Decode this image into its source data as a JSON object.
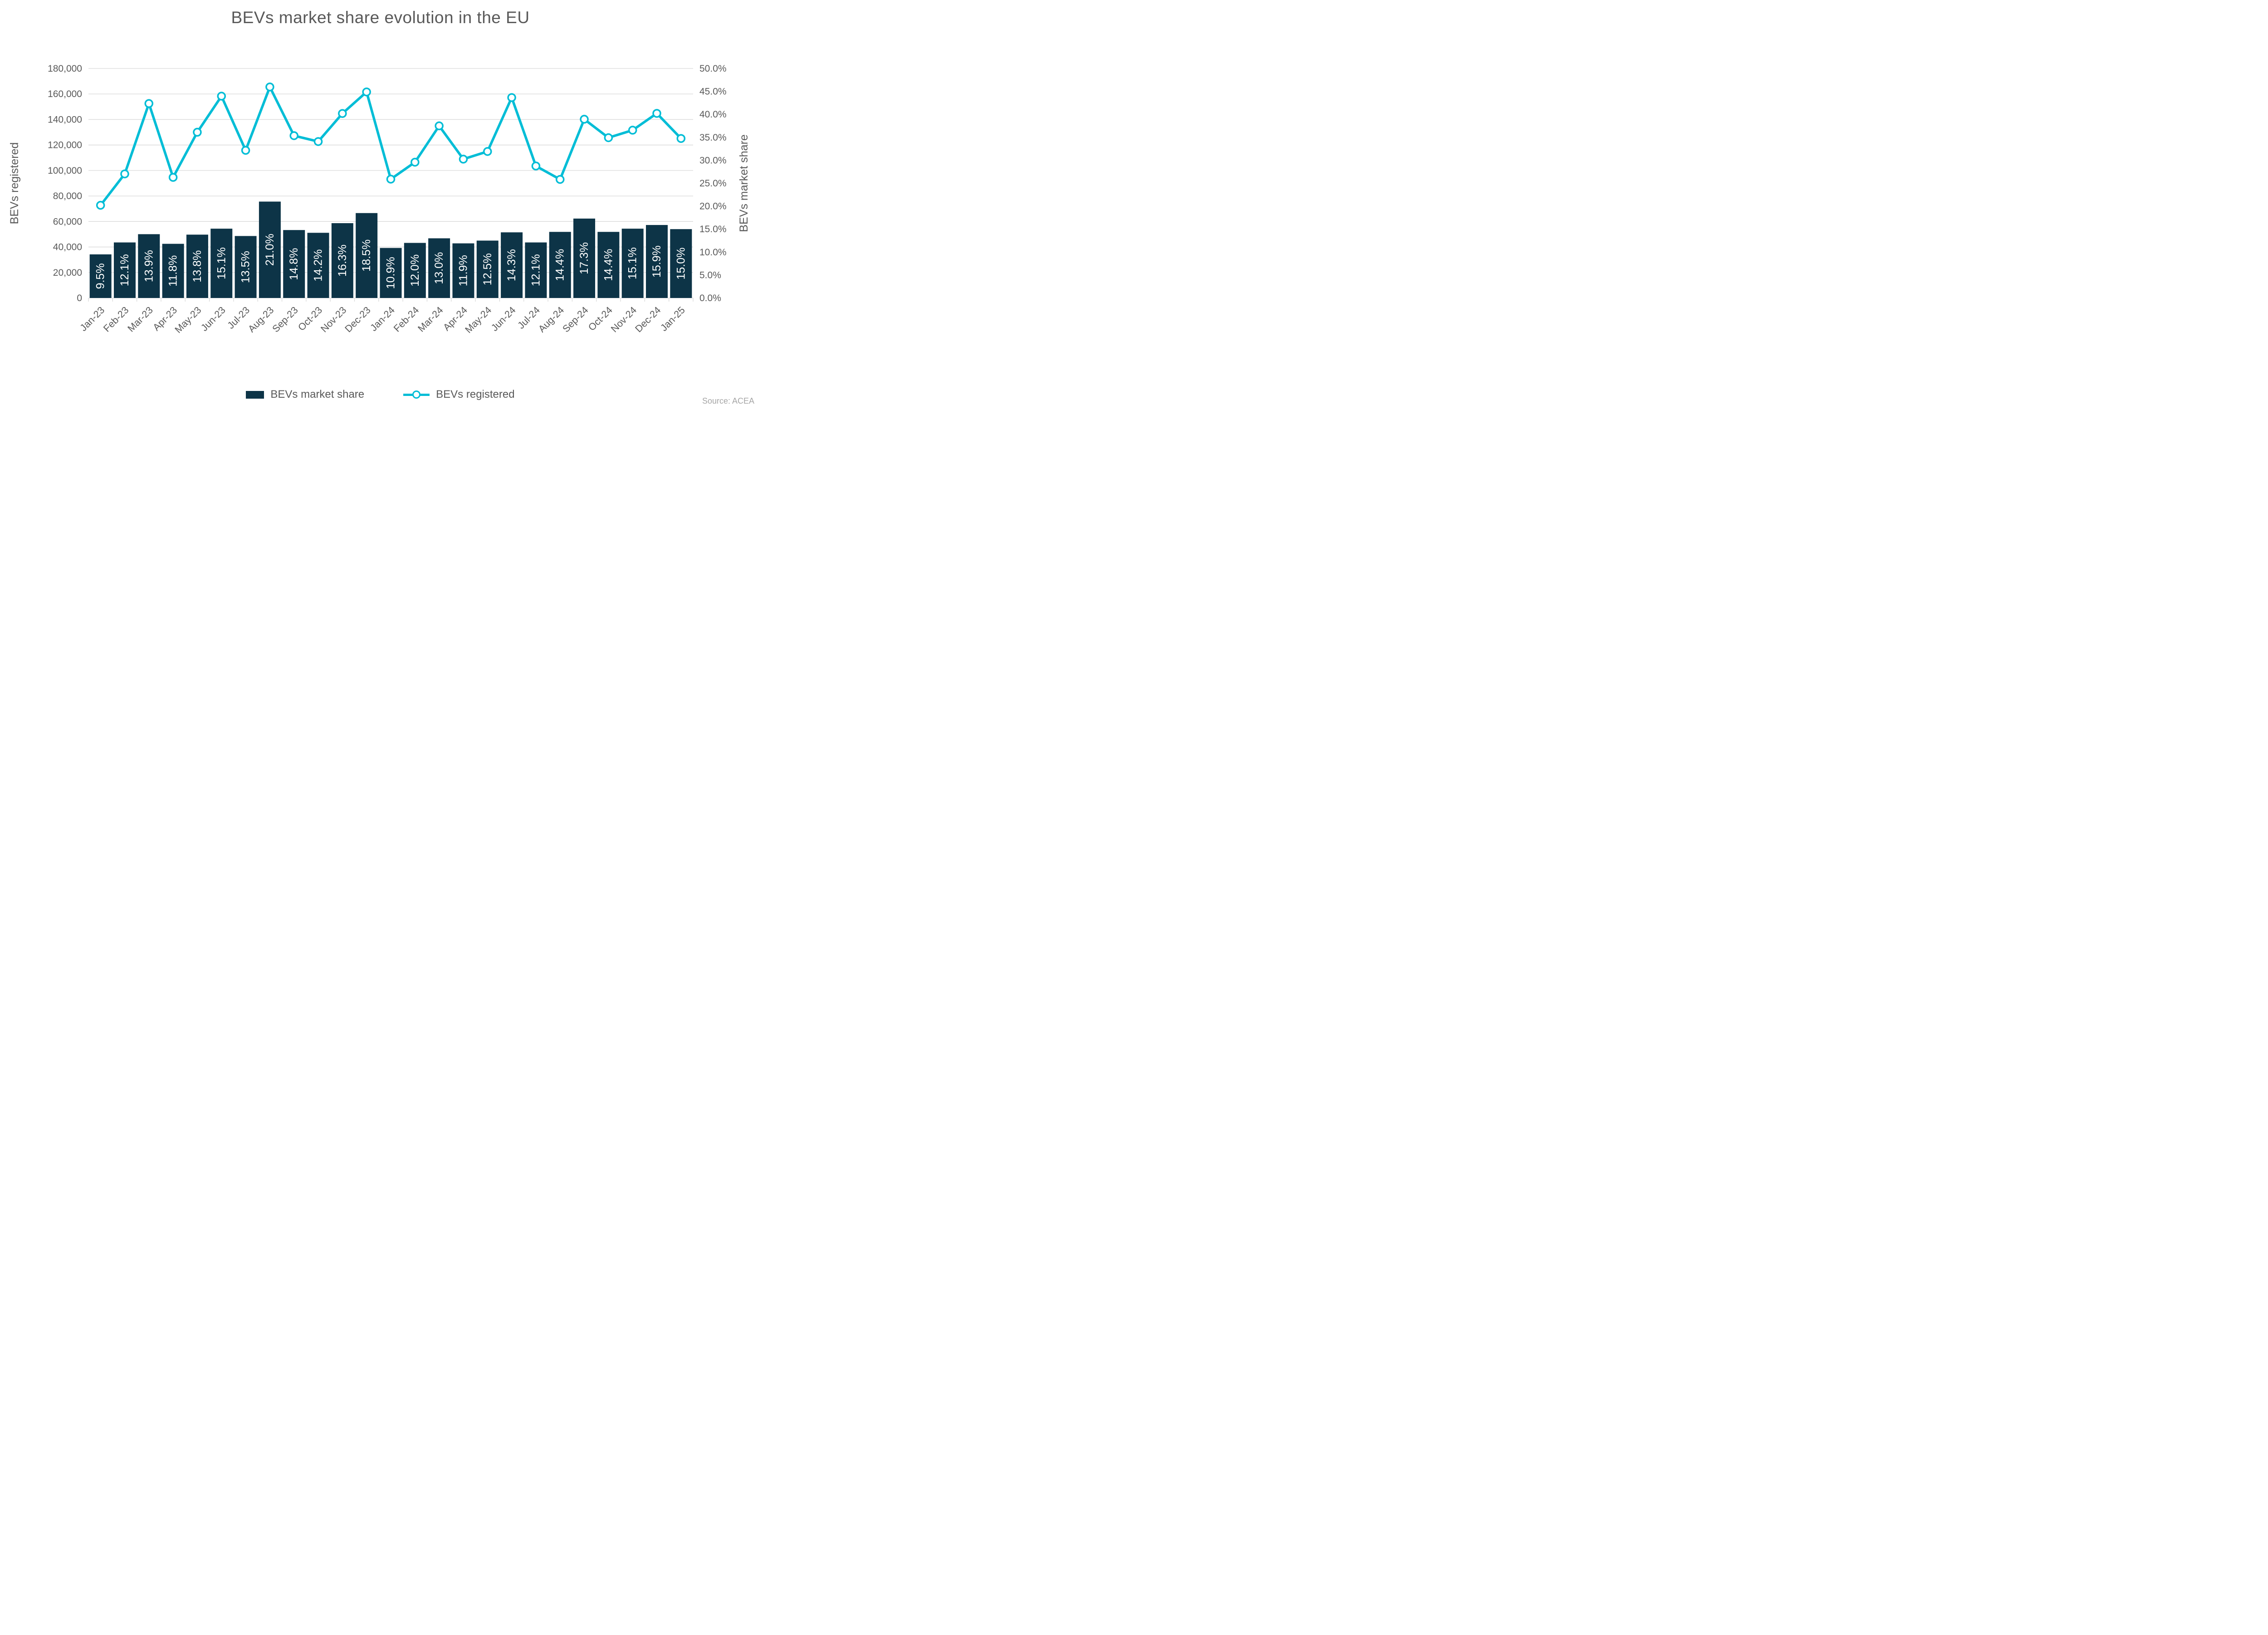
{
  "title": "BEVs market share evolution in the EU",
  "source": "Source: ACEA",
  "legend": {
    "bar_label": "BEVs market share",
    "line_label": "BEVs registered"
  },
  "colors": {
    "bar": "#0d3447",
    "line": "#00bdd6",
    "marker_fill": "#ffffff",
    "grid": "#d9d9d9",
    "axis_text": "#595959",
    "bar_label_text": "#ffffff",
    "source_text": "#a6a6a6",
    "background": "#ffffff"
  },
  "chart_data": {
    "type": "combo (bar + line)",
    "title": "BEVs market share evolution in the EU",
    "grid": "horizontal gridlines on, from left axis",
    "legend_position": "bottom center",
    "categories": [
      "Jan-23",
      "Feb-23",
      "Mar-23",
      "Apr-23",
      "May-23",
      "Jun-23",
      "Jul-23",
      "Aug-23",
      "Sep-23",
      "Oct-23",
      "Nov-23",
      "Dec-23",
      "Jan-24",
      "Feb-24",
      "Mar-24",
      "Apr-24",
      "May-24",
      "Jun-24",
      "Jul-24",
      "Aug-24",
      "Sep-24",
      "Oct-24",
      "Nov-24",
      "Dec-24",
      "Jan-25"
    ],
    "series": [
      {
        "name": "BEVs market share",
        "type": "bar",
        "axis": "right",
        "unit": "percent",
        "values": [
          9.5,
          12.1,
          13.9,
          11.8,
          13.8,
          15.1,
          13.5,
          21.0,
          14.8,
          14.2,
          16.3,
          18.5,
          10.9,
          12.0,
          13.0,
          11.9,
          12.5,
          14.3,
          12.1,
          14.4,
          17.3,
          14.4,
          15.1,
          15.9,
          15.0
        ],
        "data_labels": [
          "9.5%",
          "12.1%",
          "13.9%",
          "11.8%",
          "13.8%",
          "15.1%",
          "13.5%",
          "21.0%",
          "14.8%",
          "14.2%",
          "16.3%",
          "18.5%",
          "10.9%",
          "12.0%",
          "13.0%",
          "11.9%",
          "12.5%",
          "14.3%",
          "12.1%",
          "14.4%",
          "17.3%",
          "14.4%",
          "15.1%",
          "15.9%",
          "15.0%"
        ]
      },
      {
        "name": "BEVs registered",
        "type": "line",
        "axis": "left",
        "unit": "vehicles",
        "marker": "open circle",
        "values": [
          72700,
          97300,
          152500,
          94600,
          130000,
          158300,
          115800,
          165500,
          127300,
          122700,
          144700,
          161600,
          93200,
          106500,
          135000,
          108900,
          114900,
          157200,
          103500,
          93000,
          140200,
          125700,
          131600,
          144800,
          125100
        ]
      }
    ],
    "left_axis": {
      "title": "BEVs registered",
      "min": 0,
      "max": 180000,
      "step": 20000,
      "tick_labels": [
        "0",
        "20,000",
        "40,000",
        "60,000",
        "80,000",
        "100,000",
        "120,000",
        "140,000",
        "160,000",
        "180,000"
      ]
    },
    "right_axis": {
      "title": "BEVs market share",
      "min": 0,
      "max": 50,
      "step": 5,
      "tick_labels": [
        "0.0%",
        "5.0%",
        "10.0%",
        "15.0%",
        "20.0%",
        "25.0%",
        "30.0%",
        "35.0%",
        "40.0%",
        "45.0%",
        "50.0%"
      ]
    }
  }
}
